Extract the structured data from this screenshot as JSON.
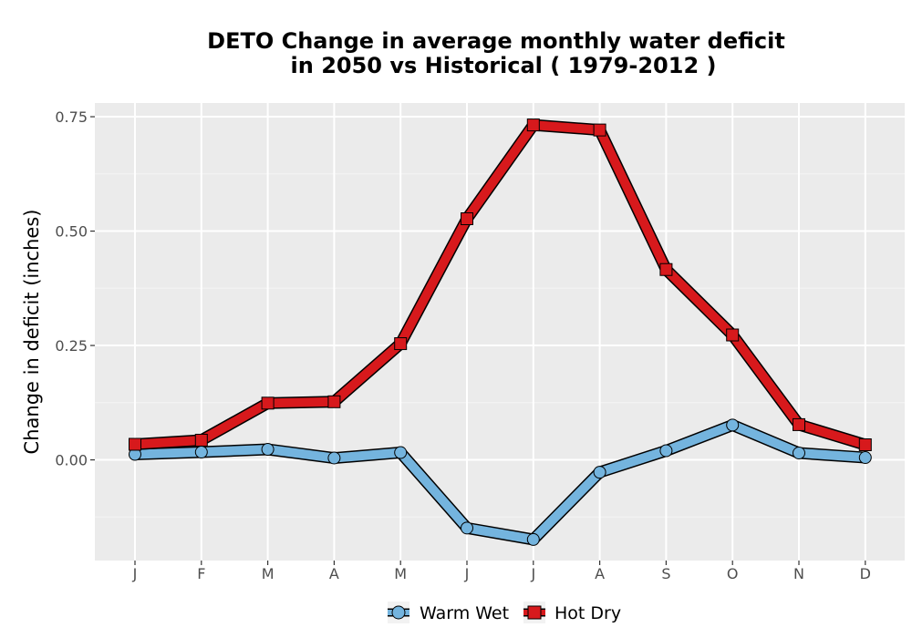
{
  "chart_data": {
    "type": "line",
    "title_line1": "DETO  Change in average monthly water deficit",
    "title_line2": "in 2050 vs Historical ( 1979-2012 )",
    "xlabel": "",
    "ylabel": "Change in deficit (inches)",
    "categories": [
      "J",
      "F",
      "M",
      "A",
      "M",
      "J",
      "J",
      "A",
      "S",
      "O",
      "N",
      "D"
    ],
    "ylim": [
      -0.22,
      0.78
    ],
    "yticks": [
      0.0,
      0.25,
      0.5,
      0.75
    ],
    "ytick_labels": [
      "0.00",
      "0.25",
      "0.50",
      "0.75"
    ],
    "grid": true,
    "legend_position": "bottom",
    "series": [
      {
        "name": "Warm Wet",
        "marker": "circle",
        "color": "#74b4de",
        "values": [
          0.012,
          0.017,
          0.023,
          0.004,
          0.016,
          -0.149,
          -0.174,
          -0.027,
          0.02,
          0.076,
          0.015,
          0.005
        ]
      },
      {
        "name": "Hot Dry",
        "marker": "square",
        "color": "#d7191c",
        "values": [
          0.034,
          0.043,
          0.124,
          0.127,
          0.254,
          0.527,
          0.732,
          0.721,
          0.416,
          0.273,
          0.077,
          0.033
        ]
      }
    ]
  }
}
